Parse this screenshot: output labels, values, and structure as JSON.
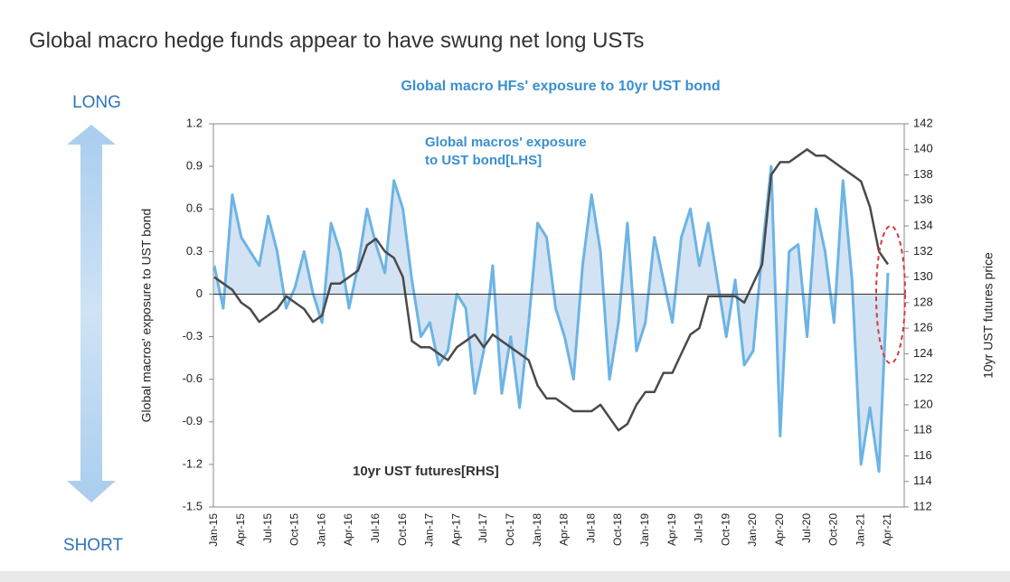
{
  "header": {
    "title": "Global macro hedge funds appear to have swung net long USTs"
  },
  "side_labels": {
    "top": "LONG",
    "bottom": "SHORT"
  },
  "chart_data": {
    "type": "line",
    "title": "Global macro HFs' exposure to 10yr UST bond",
    "y_label": "Global macros' exposure to UST bond",
    "y2_label": "10yr UST futures price",
    "annotations": [
      [
        "Global macros' exposure",
        "to UST bond[LHS]"
      ],
      [
        "10yr UST futures[RHS]"
      ]
    ],
    "categories": [
      "Jan-15",
      null,
      null,
      "Apr-15",
      null,
      null,
      "Jul-15",
      null,
      null,
      "Oct-15",
      null,
      null,
      "Jan-16",
      null,
      null,
      "Apr-16",
      null,
      null,
      "Jul-16",
      null,
      null,
      "Oct-16",
      null,
      null,
      "Jan-17",
      null,
      null,
      "Apr-17",
      null,
      null,
      "Jul-17",
      null,
      null,
      "Oct-17",
      null,
      null,
      "Jan-18",
      null,
      null,
      "Apr-18",
      null,
      null,
      "Jul-18",
      null,
      null,
      "Oct-18",
      null,
      null,
      "Jan-19",
      null,
      null,
      "Apr-19",
      null,
      null,
      "Jul-19",
      null,
      null,
      "Oct-19",
      null,
      null,
      "Jan-20",
      null,
      null,
      "Apr-20",
      null,
      null,
      "Jul-20",
      null,
      null,
      "Oct-20",
      null,
      null,
      "Jan-21",
      null,
      null,
      "Apr-21"
    ],
    "series": [
      {
        "name": "Global macros' exposure to UST bond",
        "color": "#6cb4e4",
        "fill": "#d3e3f3",
        "area": true,
        "values": [
          0.2,
          -0.1,
          0.7,
          0.4,
          0.3,
          0.2,
          0.55,
          0.3,
          -0.1,
          0.05,
          0.3,
          0.0,
          -0.2,
          0.5,
          0.3,
          -0.1,
          0.2,
          0.6,
          0.35,
          0.15,
          0.8,
          0.6,
          0.1,
          -0.3,
          -0.2,
          -0.5,
          -0.4,
          0.0,
          -0.1,
          -0.7,
          -0.4,
          0.2,
          -0.7,
          -0.3,
          -0.8,
          -0.2,
          0.5,
          0.4,
          -0.1,
          -0.3,
          -0.6,
          0.2,
          0.7,
          0.3,
          -0.6,
          -0.2,
          0.5,
          -0.4,
          -0.2,
          0.4,
          0.1,
          -0.2,
          0.4,
          0.6,
          0.2,
          0.5,
          0.1,
          -0.3,
          0.1,
          -0.5,
          -0.4,
          0.3,
          0.9,
          -1.0,
          0.3,
          0.35,
          -0.3,
          0.6,
          0.3,
          -0.2,
          0.8,
          0.1,
          -1.2,
          -0.8,
          -1.25,
          0.15
        ]
      },
      {
        "name": "10yr UST futures",
        "color": "#4a4a4a",
        "axis": "y2",
        "values": [
          130,
          129.5,
          129,
          128,
          127.5,
          126.5,
          127,
          127.5,
          128.5,
          128,
          127.5,
          126.5,
          127,
          129.5,
          129.5,
          130,
          130.5,
          132.5,
          133,
          132,
          131.5,
          130,
          125,
          124.5,
          124.5,
          124,
          123.5,
          124.5,
          125,
          125.5,
          124.5,
          125.5,
          125,
          124.5,
          124,
          123.5,
          121.5,
          120.5,
          120.5,
          120,
          119.5,
          119.5,
          119.5,
          120,
          119,
          118,
          118.5,
          120,
          121,
          121,
          122.5,
          122.5,
          124,
          125.5,
          126,
          128.5,
          128.5,
          128.5,
          128.5,
          128,
          129.5,
          131,
          138,
          139,
          139,
          139.5,
          140,
          139.5,
          139.5,
          139,
          138.5,
          138,
          137.5,
          135.5,
          132,
          131
        ]
      }
    ],
    "ylim": [
      -1.5,
      1.2
    ],
    "yticks": [
      -1.5,
      -1.2,
      -0.9,
      -0.6,
      -0.3,
      0,
      0.3,
      0.6,
      0.9,
      1.2
    ],
    "y2lim": [
      112,
      142
    ],
    "y2ticks": [
      112,
      114,
      116,
      118,
      120,
      122,
      124,
      126,
      128,
      130,
      132,
      134,
      136,
      138,
      140,
      142
    ]
  }
}
